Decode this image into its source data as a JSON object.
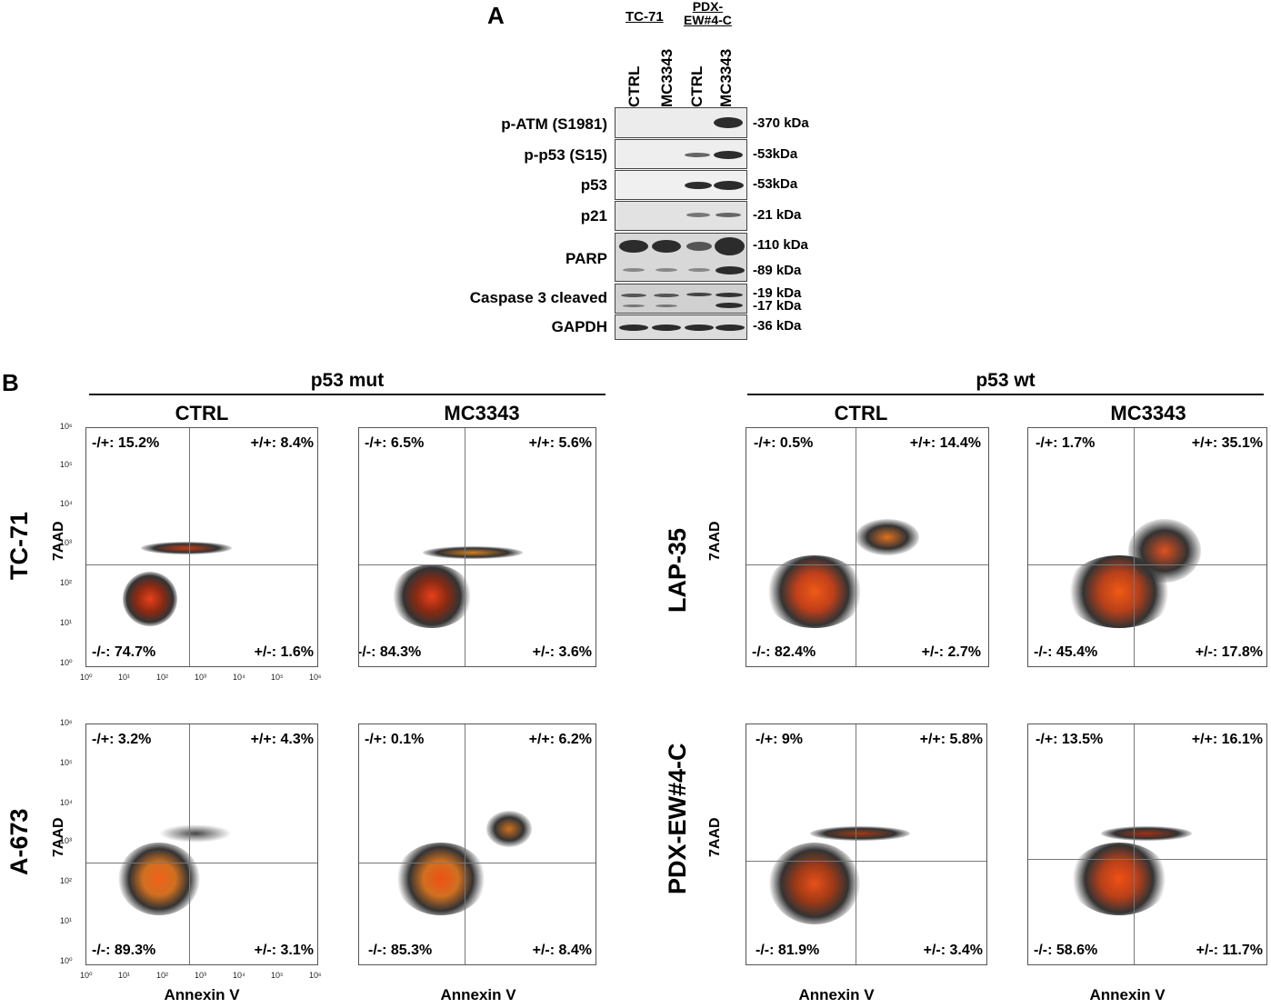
{
  "panelA": {
    "letter": "A",
    "groups": [
      "TC-71",
      "PDX-\nEW#4-C"
    ],
    "lanes": [
      "CTRL",
      "MC3343",
      "CTRL",
      "MC3343"
    ],
    "rows": [
      {
        "protein": "p-ATM (S1981)",
        "kda": "-370 kDa"
      },
      {
        "protein": "p-p53 (S15)",
        "kda": "-53kDa"
      },
      {
        "protein": "p53",
        "kda": "-53kDa"
      },
      {
        "protein": "p21",
        "kda": "-21 kDa"
      },
      {
        "protein": "PARP",
        "kda": "-110 kDa",
        "kda2": "-89 kDa"
      },
      {
        "protein": "Caspase 3 cleaved",
        "kda": "-19 kDa",
        "kda2": "-17 kDa"
      },
      {
        "protein": "GAPDH",
        "kda": "-36 kDa"
      }
    ]
  },
  "panelB": {
    "letter": "B",
    "groups": [
      "p53 mut",
      "p53 wt"
    ],
    "conditions": [
      "CTRL",
      "MC3343"
    ],
    "xlabel": "Annexin V",
    "ylabel": "7AAD",
    "cell_lines": [
      "TC-71",
      "A-673",
      "LAP-35",
      "PDX-EW#4-C"
    ],
    "plots": [
      {
        "line": "TC-71",
        "cond": "CTRL",
        "q": [
          "-/+: 15.2%",
          "+/+: 8.4%",
          "-/-: 74.7%",
          "+/-: 1.6%"
        ]
      },
      {
        "line": "TC-71",
        "cond": "MC3343",
        "q": [
          "-/+: 6.5%",
          "+/+: 5.6%",
          "-/-: 84.3%",
          "+/-: 3.6%"
        ]
      },
      {
        "line": "LAP-35",
        "cond": "CTRL",
        "q": [
          "-/+: 0.5%",
          "+/+: 14.4%",
          "-/-: 82.4%",
          "+/-: 2.7%"
        ]
      },
      {
        "line": "LAP-35",
        "cond": "MC3343",
        "q": [
          "-/+: 1.7%",
          "+/+: 35.1%",
          "-/-: 45.4%",
          "+/-: 17.8%"
        ]
      },
      {
        "line": "A-673",
        "cond": "CTRL",
        "q": [
          "-/+: 3.2%",
          "+/+: 4.3%",
          "-/-: 89.3%",
          "+/-: 3.1%"
        ]
      },
      {
        "line": "A-673",
        "cond": "MC3343",
        "q": [
          "-/+: 0.1%",
          "+/+: 6.2%",
          "-/-: 85.3%",
          "+/-: 8.4%"
        ]
      },
      {
        "line": "PDX-EW#4-C",
        "cond": "CTRL",
        "q": [
          "-/+: 9%",
          "+/+: 5.8%",
          "-/-: 81.9%",
          "+/-: 3.4%"
        ]
      },
      {
        "line": "PDX-EW#4-C",
        "cond": "MC3343",
        "q": [
          "-/+: 13.5%",
          "+/+: 16.1%",
          "-/-: 58.6%",
          "+/-: 11.7%"
        ]
      }
    ],
    "xticks": [
      "10⁰",
      "10¹",
      "10²",
      "10³",
      "10⁴",
      "10⁵",
      "10⁶"
    ],
    "yticks": [
      "10⁶",
      "10⁵",
      "10⁴",
      "10³",
      "10²",
      "10¹",
      "10⁰"
    ]
  }
}
